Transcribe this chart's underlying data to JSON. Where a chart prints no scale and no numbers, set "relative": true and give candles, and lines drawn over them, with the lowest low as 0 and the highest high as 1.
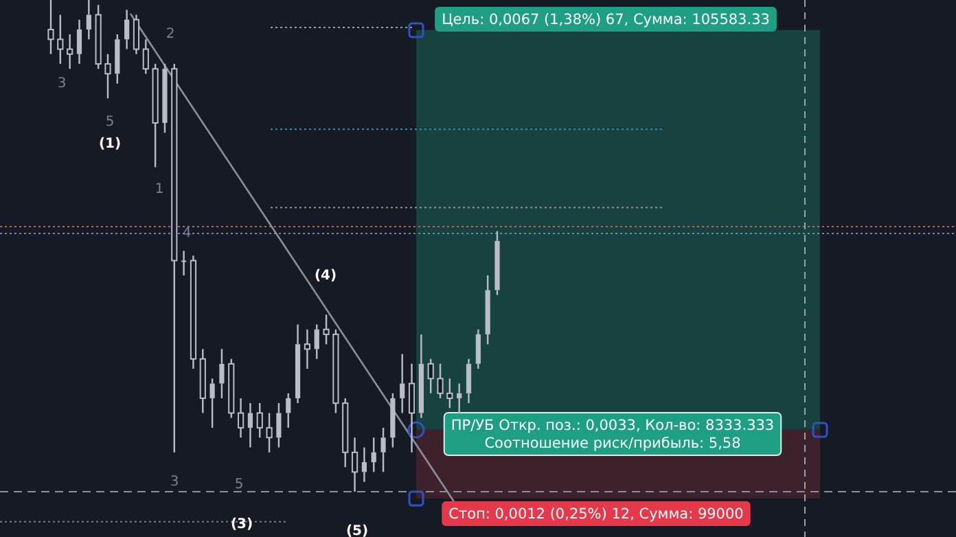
{
  "chart_data": {
    "type": "candlestick",
    "relative": true,
    "categories": [
      null,
      null,
      null,
      null,
      null,
      null,
      null,
      null,
      null,
      null,
      null,
      null,
      null,
      null,
      null,
      null,
      null,
      null,
      null,
      null,
      null,
      null,
      null,
      null,
      null,
      null,
      null,
      null,
      null,
      null,
      null,
      null,
      null,
      null,
      null,
      null,
      null,
      null,
      null,
      null,
      null,
      null,
      null,
      null,
      null,
      null,
      null,
      null
    ],
    "series": [
      {
        "color": "#b9bdc7",
        "ohlc": [
          [
            0.94,
            1,
            0.89,
            0.92
          ],
          [
            0.92,
            0.97,
            0.87,
            0.9
          ],
          [
            0.9,
            0.93,
            0.86,
            0.89
          ],
          [
            0.89,
            0.96,
            0.87,
            0.94
          ],
          [
            0.94,
            1,
            0.92,
            0.97
          ],
          [
            0.97,
            0.99,
            0.86,
            0.87
          ],
          [
            0.87,
            0.89,
            0.8,
            0.85
          ],
          [
            0.85,
            0.93,
            0.83,
            0.92
          ],
          [
            0.92,
            0.98,
            0.9,
            0.96
          ],
          [
            0.96,
            0.97,
            0.89,
            0.9
          ],
          [
            0.9,
            0.92,
            0.85,
            0.86
          ],
          [
            0.86,
            0.87,
            0.66,
            0.75
          ],
          [
            0.75,
            0.87,
            0.73,
            0.86
          ],
          [
            0.86,
            0.87,
            0.08,
            0.47
          ],
          [
            0.47,
            0.49,
            0.44,
            0.47
          ],
          [
            0.47,
            0.48,
            0.25,
            0.27
          ],
          [
            0.27,
            0.29,
            0.16,
            0.19
          ],
          [
            0.19,
            0.23,
            0.13,
            0.22
          ],
          [
            0.22,
            0.29,
            0.19,
            0.26
          ],
          [
            0.26,
            0.27,
            0.15,
            0.16
          ],
          [
            0.16,
            0.19,
            0.11,
            0.13
          ],
          [
            0.13,
            0.18,
            0.09,
            0.16
          ],
          [
            0.16,
            0.18,
            0.11,
            0.13
          ],
          [
            0.13,
            0.16,
            0.08,
            0.11
          ],
          [
            0.11,
            0.18,
            0.09,
            0.16
          ],
          [
            0.16,
            0.2,
            0.13,
            0.19
          ],
          [
            0.19,
            0.34,
            0.18,
            0.3
          ],
          [
            0.3,
            0.33,
            0.25,
            0.29
          ],
          [
            0.29,
            0.34,
            0.27,
            0.33
          ],
          [
            0.33,
            0.36,
            0.3,
            0.32
          ],
          [
            0.32,
            0.33,
            0.16,
            0.18
          ],
          [
            0.18,
            0.19,
            0.05,
            0.08
          ],
          [
            0.08,
            0.11,
            0,
            0.04
          ],
          [
            0.04,
            0.09,
            0.02,
            0.06
          ],
          [
            0.06,
            0.11,
            0.04,
            0.08
          ],
          [
            0.08,
            0.13,
            0.04,
            0.11
          ],
          [
            0.11,
            0.2,
            0.09,
            0.19
          ],
          [
            0.19,
            0.28,
            0.16,
            0.22
          ],
          [
            0.22,
            0.26,
            0.08,
            0.16
          ],
          [
            0.16,
            0.32,
            0.15,
            0.26
          ],
          [
            0.26,
            0.27,
            0.2,
            0.23
          ],
          [
            0.23,
            0.26,
            0.19,
            0.2
          ],
          [
            0.2,
            0.23,
            0.17,
            0.19
          ],
          [
            0.19,
            0.22,
            0.16,
            0.2
          ],
          [
            0.2,
            0.27,
            0.18,
            0.26
          ],
          [
            0.26,
            0.33,
            0.25,
            0.32
          ],
          [
            0.32,
            0.44,
            0.3,
            0.41
          ],
          [
            0.41,
            0.53,
            0.4,
            0.51
          ]
        ]
      }
    ],
    "bands": [
      {
        "axis": "y",
        "from": 0.126,
        "to": 0.939,
        "color": "#18423f"
      },
      {
        "axis": "y",
        "from": -0.014,
        "to": 0.126,
        "color": "#3d222b"
      }
    ],
    "ref_lines": [
      {
        "axis": "y",
        "value": 0.944,
        "color": "#9aa0ab",
        "line_style": "dotted"
      },
      {
        "axis": "y",
        "value": 0.737,
        "color": "#3a8fb0",
        "line_style": "dotted"
      },
      {
        "axis": "y",
        "value": 0.578,
        "color": "#8a919c",
        "line_style": "dotted"
      },
      {
        "axis": "y",
        "value": 0.539,
        "color": "#b0616a",
        "line_style": "dotted"
      },
      {
        "axis": "y",
        "value": 0.525,
        "color": "#6d86b8",
        "line_style": "dotted"
      },
      {
        "axis": "y",
        "value": 0,
        "color": "#8a8f99",
        "line_style": "dashed"
      },
      {
        "axis": "y",
        "value": -0.061,
        "color": "#7a808b",
        "line_style": "dotted"
      }
    ],
    "annotations": [
      "3",
      "5",
      "(1)",
      "2",
      "1",
      "4",
      "(4)",
      "3",
      "5",
      "(3)",
      "(5)",
      "Цель: 0,0067 (1,38%) 67, Сумма: 105583.33",
      "ПР/УБ Откр. поз.: 0,0033, Кол-во: 8333.333",
      "Соотношение риск/прибыль: 5,58",
      "Стоп: 0,0012 (0,25%) 12, Сумма: 99000"
    ]
  }
}
